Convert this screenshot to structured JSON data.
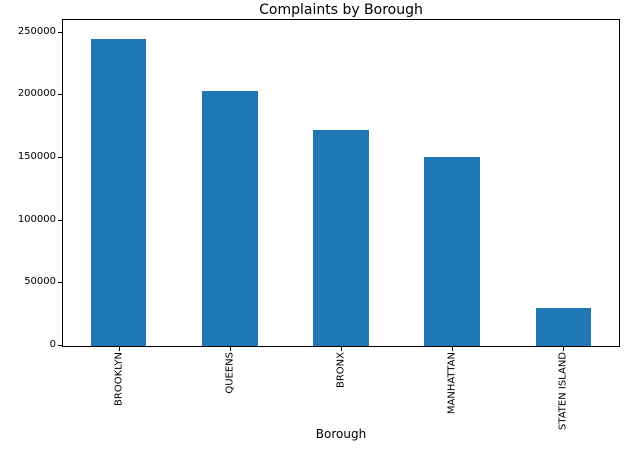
{
  "chart_data": {
    "type": "bar",
    "title": "Complaints by Borough",
    "xlabel": "Borough",
    "ylabel": "",
    "categories": [
      "BROOKLYN",
      "QUEENS",
      "BRONX",
      "MANHATTAN",
      "STATEN ISLAND"
    ],
    "values": [
      245000,
      203000,
      172000,
      151000,
      30000
    ],
    "yticks": [
      0,
      50000,
      100000,
      150000,
      200000,
      250000
    ],
    "ytick_labels": [
      "0",
      "50000",
      "100000",
      "150000",
      "200000",
      "250000"
    ],
    "ylim": [
      0,
      260000
    ],
    "x_tick_rotation": 90,
    "bar_color": "#1f77b4",
    "grid": false,
    "legend_position": "none",
    "background_color": "#ffffff",
    "axis_color": "#000000"
  }
}
